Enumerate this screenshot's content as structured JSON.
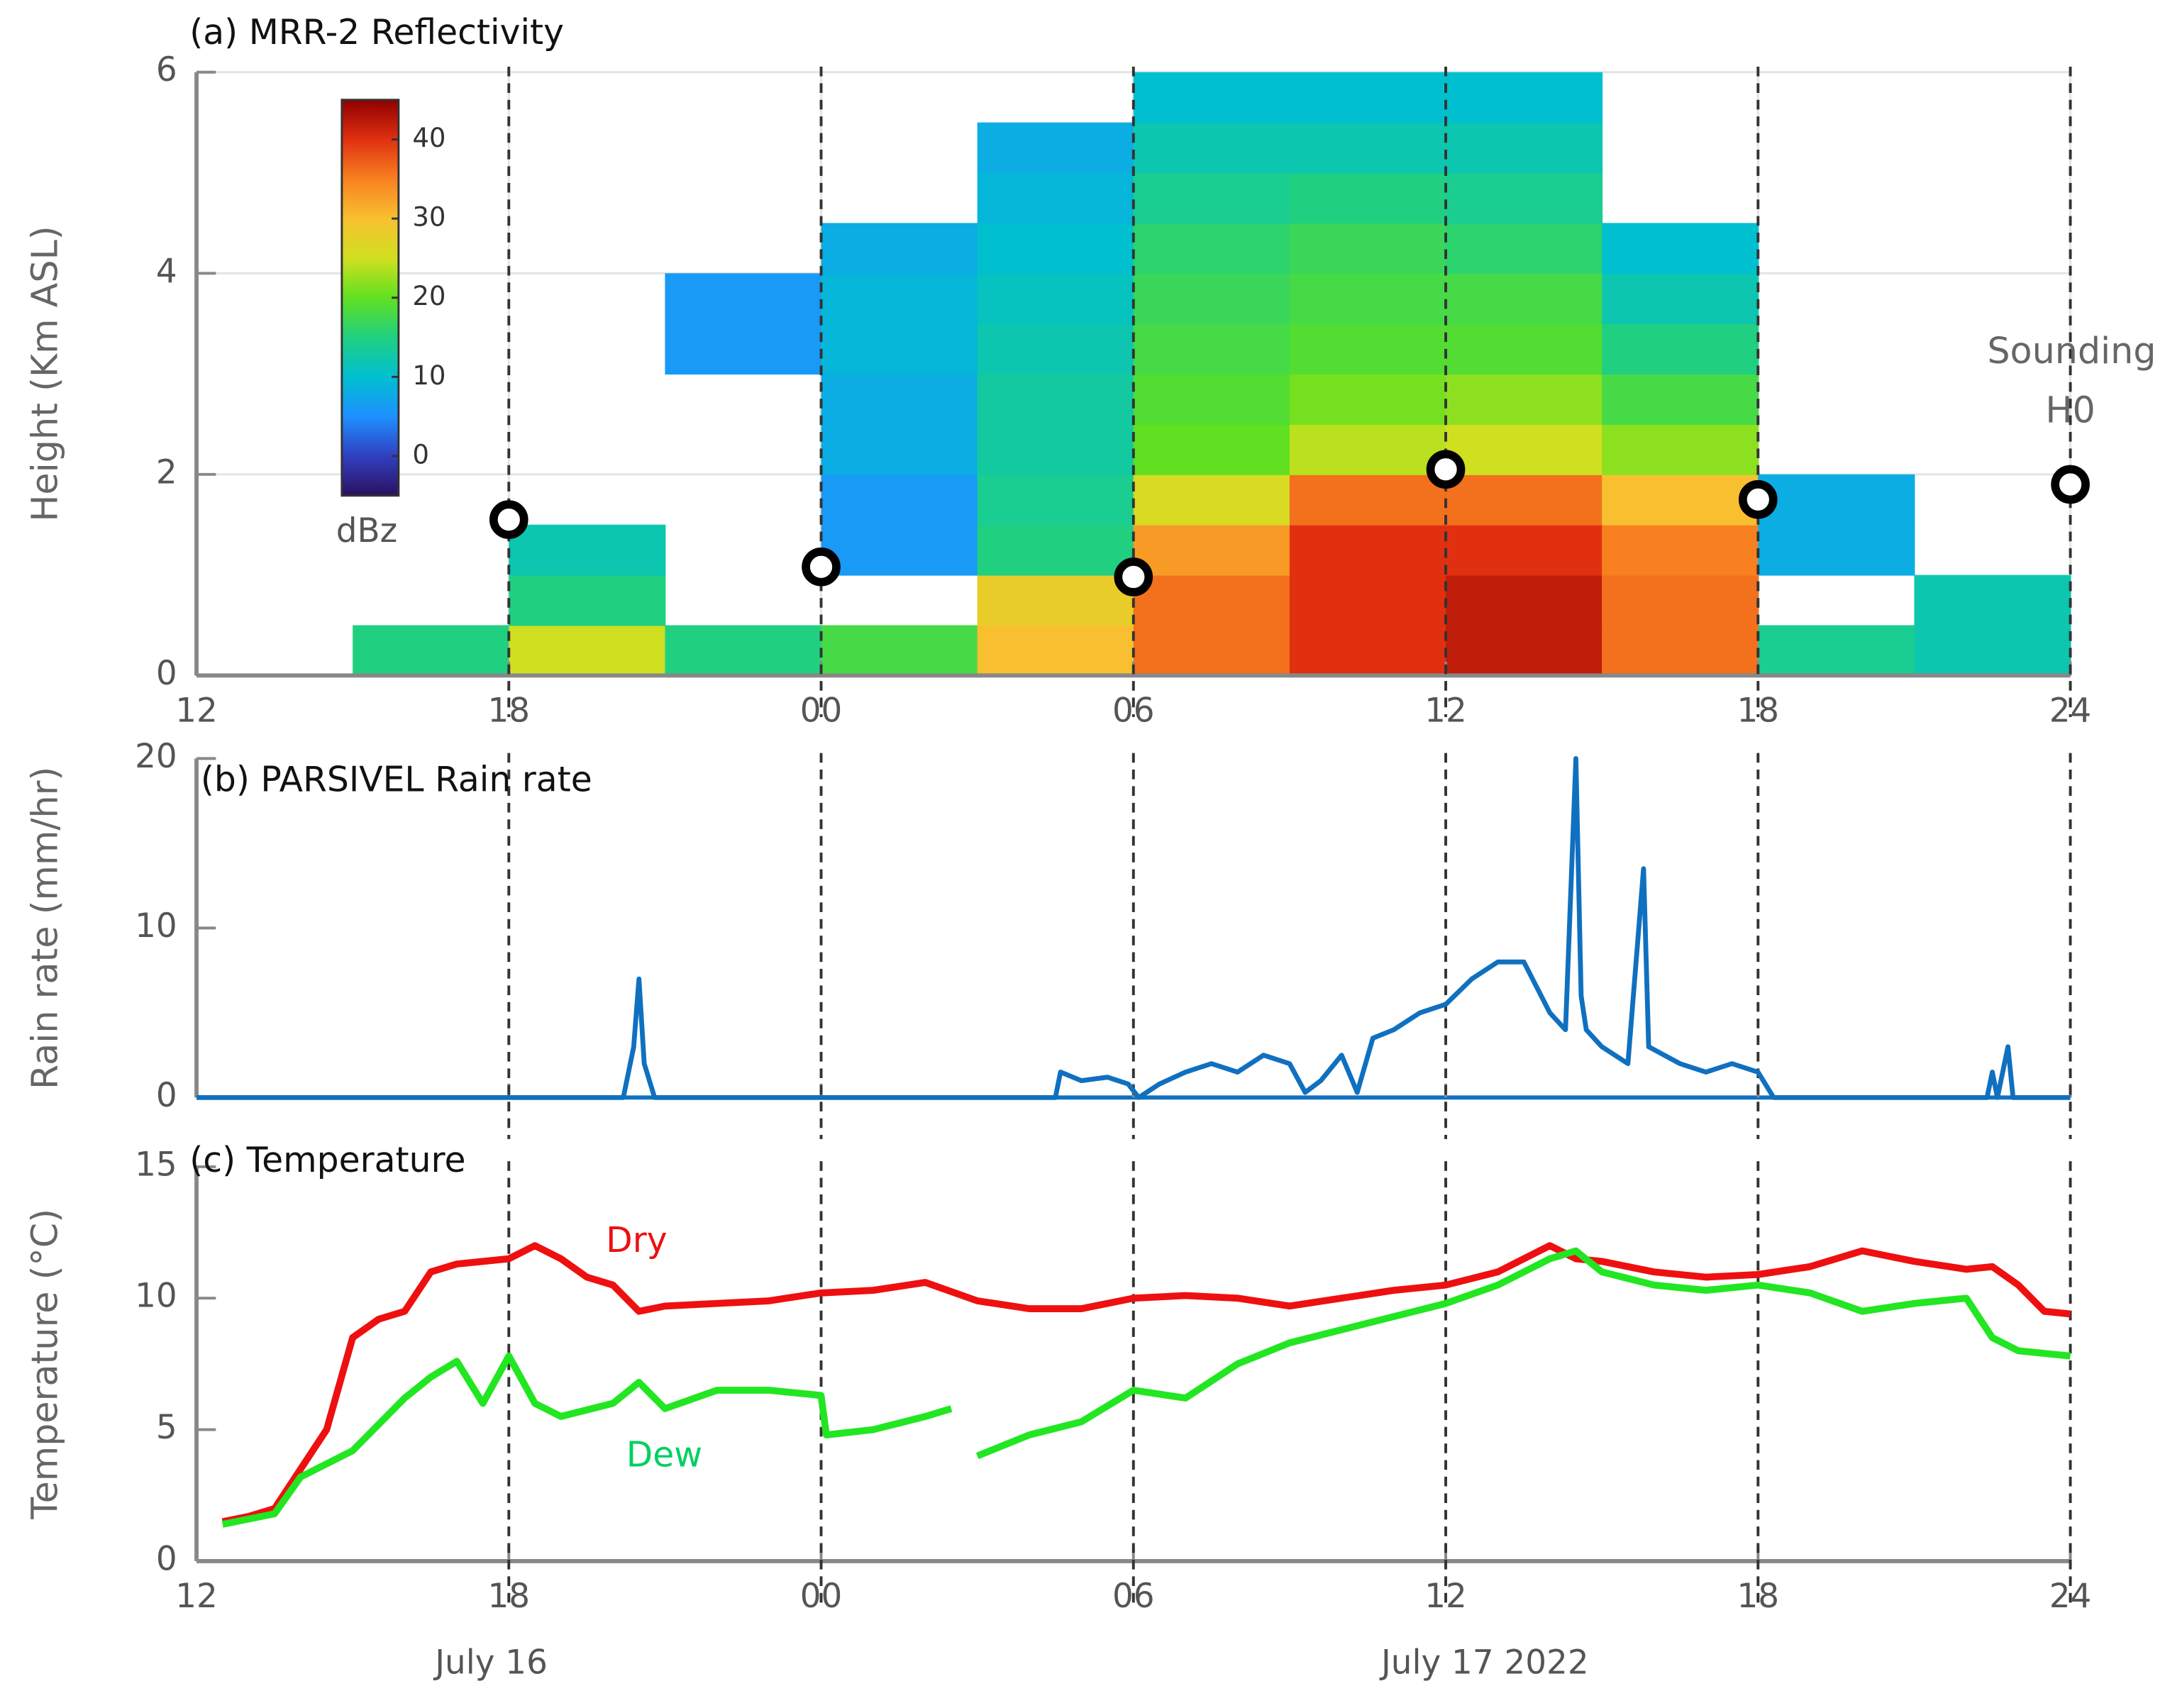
{
  "chart_data": [
    {
      "type": "heatmap",
      "title": "(a) MRR-2 Reflectivity",
      "ylabel": "Height (Km ASL)",
      "xlim": [
        12,
        48
      ],
      "ylim": [
        0,
        6
      ],
      "xticks": [
        12,
        18,
        {
          "value": 24,
          "label": "00"
        },
        {
          "value": 30,
          "label": "06"
        },
        {
          "value": 36,
          "label": "12"
        },
        {
          "value": 42,
          "label": "18"
        },
        {
          "value": 48,
          "label": "24"
        }
      ],
      "yticks": [
        0,
        2,
        4,
        6
      ],
      "grid": true,
      "vlines": [
        18,
        24,
        30,
        36,
        42,
        48
      ],
      "x_bins": [
        12,
        15,
        18,
        21,
        24,
        27,
        30,
        33,
        36,
        39,
        42,
        45,
        48
      ],
      "y_bins": [
        0,
        0.5,
        1,
        1.5,
        2,
        2.5,
        3,
        3.5,
        4,
        4.5,
        5,
        5.5,
        6
      ],
      "z": [
        [
          null,
          15,
          25,
          15,
          18,
          30,
          36,
          40,
          42,
          36,
          14,
          12
        ],
        [
          null,
          null,
          15,
          null,
          null,
          28,
          36,
          40,
          42,
          36,
          null,
          12
        ],
        [
          null,
          null,
          12,
          null,
          6,
          15,
          33,
          40,
          40,
          35,
          8,
          null
        ],
        [
          null,
          null,
          null,
          null,
          6,
          14,
          26,
          36,
          36,
          30,
          8,
          null
        ],
        [
          null,
          null,
          null,
          null,
          8,
          13,
          20,
          24,
          25,
          22,
          null,
          null
        ],
        [
          null,
          null,
          null,
          null,
          8,
          13,
          19,
          21,
          22,
          18,
          null,
          null
        ],
        [
          null,
          null,
          null,
          6,
          9,
          12,
          18,
          19,
          19,
          15,
          null,
          null
        ],
        [
          null,
          null,
          null,
          6,
          9,
          11,
          17,
          18,
          18,
          12,
          null,
          null
        ],
        [
          null,
          null,
          null,
          null,
          8,
          10,
          16,
          17,
          16,
          10,
          null,
          null
        ],
        [
          null,
          null,
          null,
          null,
          null,
          9,
          14,
          15,
          14,
          null,
          null,
          null
        ],
        [
          null,
          null,
          null,
          null,
          null,
          8,
          12,
          12,
          12,
          null,
          null,
          null
        ],
        [
          null,
          null,
          null,
          null,
          null,
          null,
          10,
          10,
          10,
          null,
          null,
          null
        ]
      ],
      "zlim": [
        -5,
        45
      ],
      "zticks": [
        0,
        10,
        20,
        30,
        40
      ],
      "colorbar_label": "dBz",
      "colormap": [
        "#2b1060",
        "#3040c0",
        "#1e90ff",
        "#00c0d0",
        "#20d080",
        "#60e020",
        "#d0e020",
        "#f8c030",
        "#f88020",
        "#e03010",
        "#900000"
      ],
      "soundings": {
        "x": [
          18,
          24,
          30,
          36,
          42,
          48
        ],
        "values": [
          1.55,
          1.08,
          0.98,
          2.05,
          1.75,
          1.9
        ]
      },
      "annotation": [
        "Sounding",
        "H0"
      ]
    },
    {
      "type": "line",
      "title": "(b) PARSIVEL Rain rate",
      "ylabel": "Rain rate (mm/hr)",
      "xlim": [
        12,
        48
      ],
      "ylim": [
        0,
        20
      ],
      "xticks": [
        12,
        18,
        24,
        30,
        36,
        42,
        48
      ],
      "yticks": [
        0,
        10,
        20
      ],
      "vlines": [
        18,
        24,
        30,
        36,
        42,
        48
      ],
      "series": [
        {
          "color": "#1070c0",
          "x": [
            12,
            20.2,
            20.4,
            20.5,
            20.6,
            20.8,
            28.5,
            28.6,
            29,
            29.5,
            29.9,
            30.1,
            30.5,
            31,
            31.5,
            32,
            32.5,
            33,
            33.3,
            33.6,
            34,
            34.3,
            34.6,
            35,
            35.5,
            36,
            36.5,
            37,
            37.5,
            38,
            38.3,
            38.5,
            38.6,
            38.7,
            39,
            39.5,
            39.8,
            39.9,
            40.5,
            41,
            41.5,
            42,
            42.3,
            46.4,
            46.5,
            46.6,
            46.8,
            46.9,
            48
          ],
          "values": [
            0,
            0,
            3,
            7,
            2,
            0,
            0,
            1.5,
            1,
            1.2,
            0.8,
            0,
            0.8,
            1.5,
            2,
            1.5,
            2.5,
            2,
            0.3,
            1,
            2.5,
            0.3,
            3.5,
            4,
            5,
            5.5,
            7,
            8,
            8,
            5,
            4,
            20,
            6,
            4,
            3,
            2,
            13.5,
            3,
            2,
            1.5,
            2,
            1.5,
            0,
            0,
            1.5,
            0,
            3,
            0,
            0
          ]
        }
      ]
    },
    {
      "type": "line",
      "title": "(c) Temperature",
      "ylabel": "Temperature (°C)",
      "xlim": [
        12,
        48
      ],
      "ylim": [
        0,
        15
      ],
      "xticks": [
        12,
        18,
        {
          "value": 24,
          "label": "00"
        },
        {
          "value": 30,
          "label": "06"
        },
        {
          "value": 36,
          "label": "12"
        },
        {
          "value": 42,
          "label": "18"
        },
        {
          "value": 48,
          "label": "24"
        }
      ],
      "yticks": [
        0,
        5,
        10,
        15
      ],
      "vlines": [
        18,
        24,
        30,
        36,
        42,
        48
      ],
      "date_labels": [
        "July 16",
        "July 17 2022"
      ],
      "series": [
        {
          "name": "Dry",
          "color": "#ee1010",
          "x": [
            12.5,
            13,
            13.5,
            14,
            14.5,
            15,
            15.5,
            16,
            16.5,
            17,
            17.5,
            18,
            18.5,
            19,
            19.5,
            20,
            20.5,
            21,
            22,
            23,
            24,
            25,
            26,
            27,
            28,
            29,
            30,
            31,
            32,
            33,
            34,
            35,
            36,
            37,
            38,
            38.5,
            39,
            40,
            41,
            42,
            43,
            44,
            45,
            46,
            46.5,
            47,
            47.5,
            48
          ],
          "values": [
            1.5,
            1.7,
            2,
            3.5,
            5,
            8.5,
            9.2,
            9.5,
            11,
            11.3,
            11.4,
            11.5,
            12,
            11.5,
            10.8,
            10.5,
            9.5,
            9.7,
            9.8,
            9.9,
            10.2,
            10.3,
            10.6,
            9.9,
            9.6,
            9.6,
            10,
            10.1,
            10,
            9.7,
            10,
            10.3,
            10.5,
            11,
            12,
            11.5,
            11.4,
            11,
            10.8,
            10.9,
            11.2,
            11.8,
            11.4,
            11.1,
            11.2,
            10.5,
            9.5,
            9.4
          ]
        },
        {
          "name": "Dew",
          "color": "#22e622",
          "x": [
            12.5,
            13,
            13.5,
            14,
            15,
            16,
            16.5,
            17,
            17.5,
            18,
            18.5,
            19,
            20,
            20.5,
            21,
            22,
            23,
            24,
            24.1,
            25,
            26,
            26.5,
            26.6,
            27,
            28,
            29,
            30,
            31,
            32,
            33,
            34,
            35,
            36,
            37,
            38,
            38.5,
            39,
            40,
            41,
            42,
            43,
            44,
            45,
            46,
            46.5,
            47,
            48
          ],
          "values": [
            1.4,
            1.6,
            1.8,
            3.2,
            4.2,
            6.2,
            7,
            7.6,
            6,
            7.8,
            6,
            5.5,
            6,
            6.8,
            5.8,
            6.5,
            6.5,
            6.3,
            4.8,
            5,
            5.5,
            5.8,
            null,
            4,
            4.8,
            5.3,
            6.5,
            6.2,
            7.5,
            8.3,
            8.8,
            9.3,
            9.8,
            10.5,
            11.5,
            11.8,
            11,
            10.5,
            10.3,
            10.5,
            10.2,
            9.5,
            9.8,
            10,
            8.5,
            8,
            7.8
          ]
        }
      ]
    }
  ]
}
